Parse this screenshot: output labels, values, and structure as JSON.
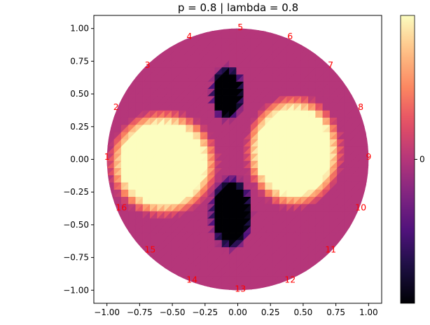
{
  "chart_data": {
    "type": "heatmap",
    "title": "p = 0.8 | lambda = 0.8",
    "xlabel": "",
    "ylabel": "",
    "xlim": [
      -1.1,
      1.1
    ],
    "ylim": [
      -1.1,
      1.1
    ],
    "xticks": [
      -1.0,
      -0.75,
      -0.5,
      -0.25,
      0.0,
      0.25,
      0.5,
      0.75,
      1.0
    ],
    "xtick_labels": [
      "−1.00",
      "−0.75",
      "−0.50",
      "−0.25",
      "0.00",
      "0.25",
      "0.50",
      "0.75",
      "1.00"
    ],
    "yticks": [
      1.0,
      0.75,
      0.5,
      0.25,
      0.0,
      -0.25,
      -0.5,
      -0.75,
      -1.0
    ],
    "ytick_labels": [
      "1.00",
      "0.75",
      "0.50",
      "0.25",
      "0.00",
      "−0.25",
      "−0.50",
      "−0.75",
      "−1.00"
    ],
    "domain": {
      "shape": "disk",
      "center": [
        0.0,
        0.0
      ],
      "radius": 1.0
    },
    "background_value": 0.0,
    "inclusions": [
      {
        "name": "left-high",
        "center": [
          -0.57,
          -0.03
        ],
        "rx": 0.35,
        "ry": 0.34,
        "value": 1.0
      },
      {
        "name": "right-high",
        "center": [
          0.43,
          0.06
        ],
        "rx": 0.31,
        "ry": 0.36,
        "value": 1.0
      },
      {
        "name": "top-low",
        "center": [
          -0.08,
          0.51
        ],
        "rx": 0.11,
        "ry": 0.18,
        "value": -1.0
      },
      {
        "name": "bottom-low",
        "center": [
          -0.05,
          -0.41
        ],
        "rx": 0.14,
        "ry": 0.24,
        "value": -1.0
      }
    ],
    "electrodes": [
      {
        "label": "1",
        "x": -1.0,
        "y": 0.02
      },
      {
        "label": "2",
        "x": -0.93,
        "y": 0.4
      },
      {
        "label": "3",
        "x": -0.69,
        "y": 0.72
      },
      {
        "label": "4",
        "x": -0.37,
        "y": 0.94
      },
      {
        "label": "5",
        "x": 0.02,
        "y": 1.01
      },
      {
        "label": "6",
        "x": 0.4,
        "y": 0.94
      },
      {
        "label": "7",
        "x": 0.71,
        "y": 0.72
      },
      {
        "label": "8",
        "x": 0.94,
        "y": 0.4
      },
      {
        "label": "9",
        "x": 1.0,
        "y": 0.02
      },
      {
        "label": "10",
        "x": 0.94,
        "y": -0.37
      },
      {
        "label": "11",
        "x": 0.71,
        "y": -0.69
      },
      {
        "label": "12",
        "x": 0.4,
        "y": -0.92
      },
      {
        "label": "13",
        "x": 0.02,
        "y": -0.99
      },
      {
        "label": "14",
        "x": -0.35,
        "y": -0.92
      },
      {
        "label": "15",
        "x": -0.67,
        "y": -0.69
      },
      {
        "label": "16",
        "x": -0.89,
        "y": -0.37
      }
    ],
    "colormap": "magma",
    "colorbar": {
      "range": [
        -1.0,
        1.0
      ],
      "tick_values": [
        0
      ],
      "tick_labels": [
        "0"
      ]
    },
    "colors": {
      "label_color": "#ff0000",
      "background_cell": "#b5367a"
    }
  }
}
